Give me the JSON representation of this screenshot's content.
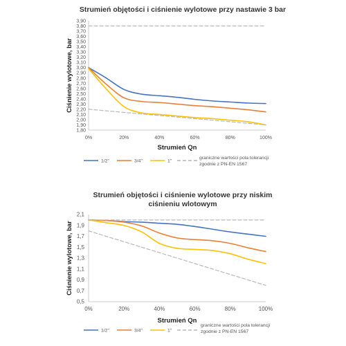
{
  "chart_data": [
    {
      "type": "line",
      "title": "Strumień objętości i ciśnienie wylotowe przy nastawie 3 bar",
      "xlabel": "Strumień Qn",
      "ylabel": "Ciśnienie wylotowe, bar",
      "x": [
        0,
        10,
        20,
        30,
        40,
        50,
        60,
        70,
        80,
        90,
        100
      ],
      "x_ticks": [
        "0%",
        "20%",
        "40%",
        "60%",
        "80%",
        "100%"
      ],
      "y_ticks": [
        "1,80",
        "1,90",
        "2,00",
        "2,10",
        "2,20",
        "2,30",
        "2,40",
        "2,50",
        "2,60",
        "2,70",
        "2,80",
        "2,90",
        "3,00",
        "3,10",
        "3,20",
        "3,30",
        "3,40",
        "3,50",
        "3,60",
        "3,70",
        "3,80",
        "3,90"
      ],
      "ylim": [
        1.8,
        3.9
      ],
      "grid": false,
      "legend": "bottom",
      "series": [
        {
          "name": "1/2\"",
          "color": "#4472c4",
          "style": "solid",
          "values": [
            3.0,
            2.8,
            2.58,
            2.49,
            2.46,
            2.43,
            2.39,
            2.36,
            2.34,
            2.32,
            2.31
          ]
        },
        {
          "name": "3/4\"",
          "color": "#ed7d31",
          "style": "solid",
          "values": [
            3.0,
            2.68,
            2.42,
            2.35,
            2.33,
            2.3,
            2.27,
            2.25,
            2.22,
            2.19,
            2.15
          ]
        },
        {
          "name": "1\"",
          "color": "#ffc000",
          "style": "solid",
          "values": [
            2.98,
            2.59,
            2.25,
            2.13,
            2.1,
            2.07,
            2.04,
            2.02,
            1.99,
            1.96,
            1.9
          ]
        },
        {
          "name": "graniczne wartości pola tolerancji zgodnie z PN-EN 1567",
          "color": "#b8b8b8",
          "style": "dashed",
          "values": [
            2.2,
            2.17,
            2.14,
            2.11,
            2.08,
            2.05,
            2.02,
            1.99,
            1.96,
            1.93,
            1.9
          ]
        },
        {
          "name": "",
          "color": "#b8b8b8",
          "style": "dashed",
          "legend": false,
          "values": [
            3.8,
            3.8,
            3.8,
            3.8,
            3.8,
            3.8,
            3.8,
            3.8,
            3.8,
            3.8,
            3.8
          ]
        }
      ]
    },
    {
      "type": "line",
      "title": "Strumień objętości i ciśnienie wylotowe przy niskim ciśnieniu wlotowym",
      "title_lines": [
        "Strumień objętości i ciśnienie wylotowe przy niskim",
        "ciśnieniu wlotowym"
      ],
      "xlabel": "Strumień Qn",
      "ylabel": "Ciśnienie wylotowe, bar",
      "x": [
        0,
        10,
        20,
        30,
        40,
        50,
        60,
        70,
        80,
        90,
        100
      ],
      "x_ticks": [
        "0%",
        "20%",
        "40%",
        "60%",
        "80%",
        "100%"
      ],
      "y_ticks": [
        "0,5",
        "0,7",
        "0,9",
        "1,1",
        "1,3",
        "1,5",
        "1,7",
        "1,9",
        "2,1"
      ],
      "ylim": [
        0.5,
        2.1
      ],
      "grid": false,
      "legend": "bottom",
      "series": [
        {
          "name": "1/2\"",
          "color": "#4472c4",
          "style": "solid",
          "values": [
            2.0,
            1.99,
            1.97,
            1.96,
            1.94,
            1.92,
            1.88,
            1.83,
            1.78,
            1.74,
            1.7
          ]
        },
        {
          "name": "3/4\"",
          "color": "#ed7d31",
          "style": "solid",
          "values": [
            2.0,
            1.99,
            1.96,
            1.89,
            1.76,
            1.67,
            1.64,
            1.62,
            1.57,
            1.49,
            1.42
          ]
        },
        {
          "name": "1\"",
          "color": "#ffc000",
          "style": "solid",
          "values": [
            2.0,
            1.95,
            1.9,
            1.78,
            1.57,
            1.48,
            1.46,
            1.44,
            1.38,
            1.28,
            1.2
          ]
        },
        {
          "name": "graniczne wartości pola tolerancji zgodnie z PN-EN 1567",
          "color": "#b8b8b8",
          "style": "dashed",
          "values": [
            1.8,
            1.7,
            1.6,
            1.5,
            1.4,
            1.3,
            1.2,
            1.1,
            1.0,
            0.9,
            0.8
          ]
        },
        {
          "name": "",
          "color": "#b8b8b8",
          "style": "dashed",
          "legend": false,
          "values": [
            2.0,
            2.0,
            2.0,
            2.0,
            2.0,
            2.0,
            2.0,
            2.0,
            2.0,
            2.0,
            2.0
          ]
        }
      ]
    }
  ]
}
